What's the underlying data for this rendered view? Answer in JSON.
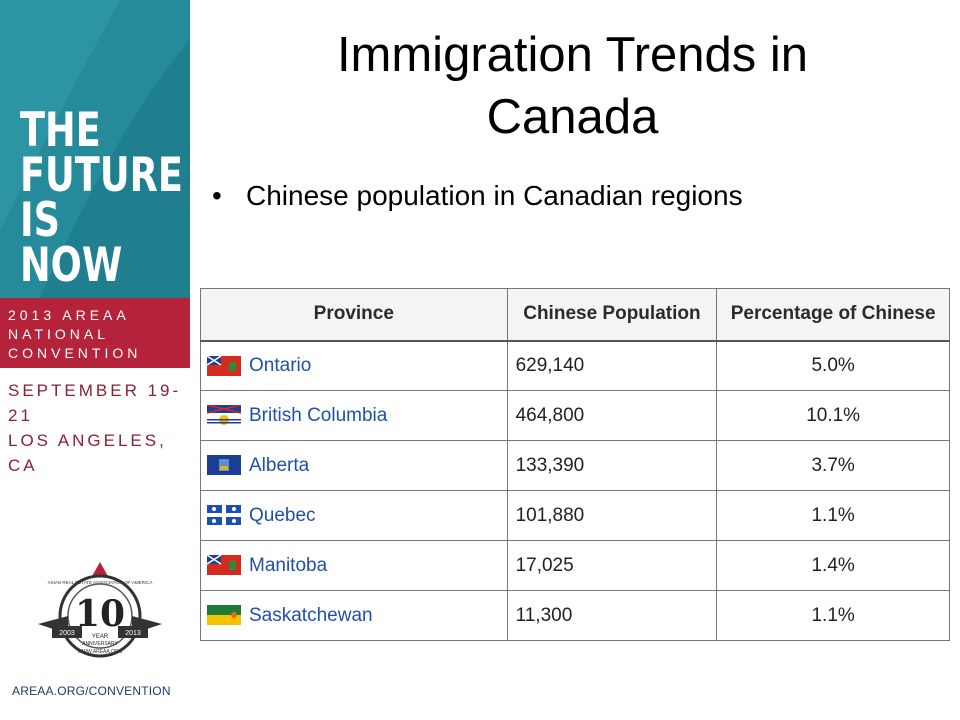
{
  "sidebar": {
    "tagline": [
      "THE",
      "FUTURE",
      "IS",
      "NOW"
    ],
    "convention": [
      "2013 AREAA",
      "NATIONAL",
      "CONVENTION"
    ],
    "dates": [
      "SEPTEMBER 19-21",
      "LOS ANGELES, CA"
    ],
    "logo": {
      "number": "10",
      "year_text": "YEAR",
      "anniversary_text": "ANNIVERSARY",
      "start_year": "2003",
      "end_year": "2013",
      "arc_text": "ASIAN REAL ESTATE ASSOCIATION OF AMERICA",
      "url_text": "WWW.AREAA.ORG"
    },
    "footer_url": "AREAA.ORG/CONVENTION"
  },
  "colors": {
    "teal": "#1f7f8f",
    "red": "#b5233a",
    "date_red": "#8a2230",
    "link_blue": "#1f4fae"
  },
  "slide": {
    "title_line1": "Immigration Trends in",
    "title_line2": "Canada",
    "bullet": "Chinese population in Canadian regions"
  },
  "table": {
    "headers": [
      "Province",
      "Chinese Population",
      "Percentage of Chinese"
    ],
    "rows": [
      {
        "province": "Ontario",
        "flag_icon": "ontario-flag-icon",
        "population": "629,140",
        "percentage": "5.0%"
      },
      {
        "province": "British Columbia",
        "flag_icon": "british-columbia-flag-icon",
        "population": "464,800",
        "percentage": "10.1%"
      },
      {
        "province": "Alberta",
        "flag_icon": "alberta-flag-icon",
        "population": "133,390",
        "percentage": "3.7%"
      },
      {
        "province": "Quebec",
        "flag_icon": "quebec-flag-icon",
        "population": "101,880",
        "percentage": "1.1%"
      },
      {
        "province": "Manitoba",
        "flag_icon": "manitoba-flag-icon",
        "population": "17,025",
        "percentage": "1.4%"
      },
      {
        "province": "Saskatchewan",
        "flag_icon": "saskatchewan-flag-icon",
        "population": "11,300",
        "percentage": "1.1%"
      }
    ]
  }
}
